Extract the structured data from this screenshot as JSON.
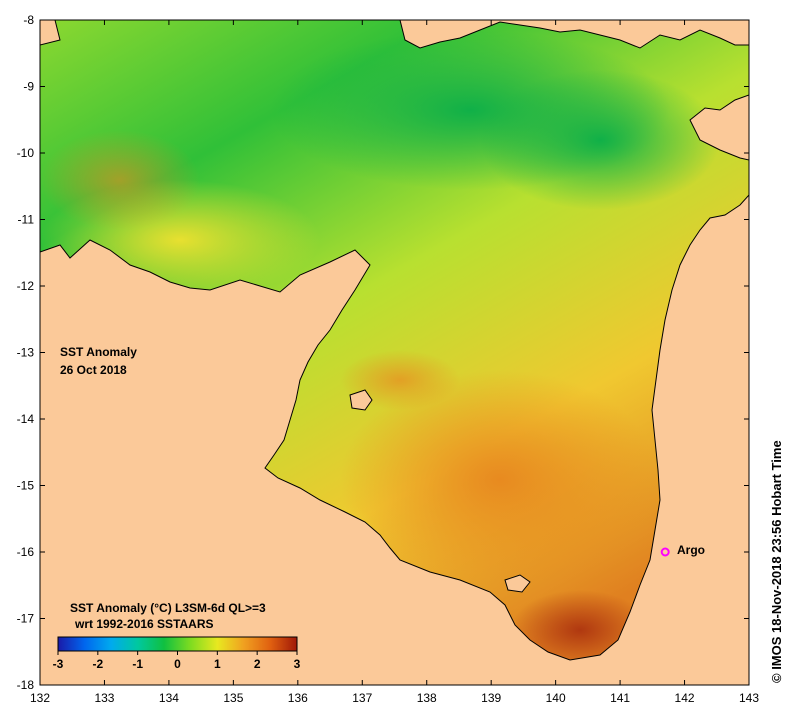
{
  "map": {
    "title_line1": "SST Anomaly",
    "title_line2": "26 Oct 2018",
    "credit": "© IMOS 18-Nov-2018 23:56 Hobart Time",
    "marker_label": "Argo",
    "marker": {
      "lon": 141.7,
      "lat": -16.0,
      "color": "#ff00ff"
    },
    "land_color": "#fbc999",
    "x_ticks": [
      "132",
      "133",
      "134",
      "135",
      "136",
      "137",
      "138",
      "139",
      "140",
      "141",
      "142",
      "143"
    ],
    "y_ticks": [
      "-8",
      "-9",
      "-10",
      "-11",
      "-12",
      "-13",
      "-14",
      "-15",
      "-16",
      "-17",
      "-18"
    ]
  },
  "colorbar": {
    "title_line1": "SST Anomaly (°C) L3SM-6d QL>=3",
    "title_line2": "wrt 1992-2016 SSTAARS",
    "ticks": [
      "-3",
      "-2",
      "-1",
      "0",
      "1",
      "2",
      "3"
    ],
    "range": [
      -3,
      3
    ],
    "colors": [
      "#1a1aa8",
      "#0066ee",
      "#00aaee",
      "#00c8a0",
      "#10c040",
      "#80dc20",
      "#e8e820",
      "#f0a020",
      "#e06010",
      "#a01808"
    ]
  },
  "chart_data": {
    "type": "heatmap",
    "x_axis": "longitude",
    "y_axis": "latitude",
    "xlim": [
      132,
      143
    ],
    "ylim": [
      -18,
      -8
    ],
    "variable": "SST Anomaly (°C)",
    "value_range": [
      -3,
      3
    ]
  }
}
